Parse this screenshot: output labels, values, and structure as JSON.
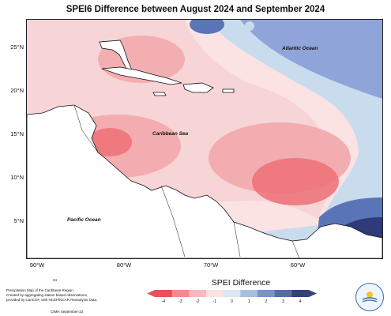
{
  "title": "SPEI6 Difference between August 2024 and September 2024",
  "latitude_labels": [
    "25°N",
    "20°N",
    "15°N",
    "10°N",
    "5°N"
  ],
  "longitude_labels": [
    "90°W",
    "80°W",
    "70°W",
    "60°W"
  ],
  "region_labels": {
    "atlantic": "Atlantic Ocean",
    "caribbean": "Caribbean Sea",
    "pacific": "Pacific Ocean"
  },
  "footer": {
    "page_number": "24",
    "line1": "Precipitation Map of the Caribbean Region.",
    "line2": "Created by aggregating station based observations,",
    "line3": "provided by CariCOF, with NCEP/NCAR Reanalysis Data.",
    "credit": "CIMH September-22"
  },
  "legend": {
    "title": "SPEI Difference",
    "ticks": [
      "-4",
      "-3",
      "-2",
      "-1",
      "0",
      "1",
      "2",
      "3",
      "4"
    ],
    "colors": [
      "#e8505b",
      "#f08b91",
      "#f7b9bd",
      "#fbe2e3",
      "#dbe6f3",
      "#a8bfe0",
      "#7a93c8",
      "#556ca6",
      "#34407a"
    ]
  },
  "logo_text": "CIMH",
  "colors": {
    "positive_strong": "#2f3a7a",
    "positive_mid": "#5a74b8",
    "positive_light": "#8fa4d8",
    "neutral": "#c9dced",
    "negative_light": "#f7d4d6",
    "negative_mid": "#f2a7ab",
    "negative_strong": "#ec7076"
  }
}
